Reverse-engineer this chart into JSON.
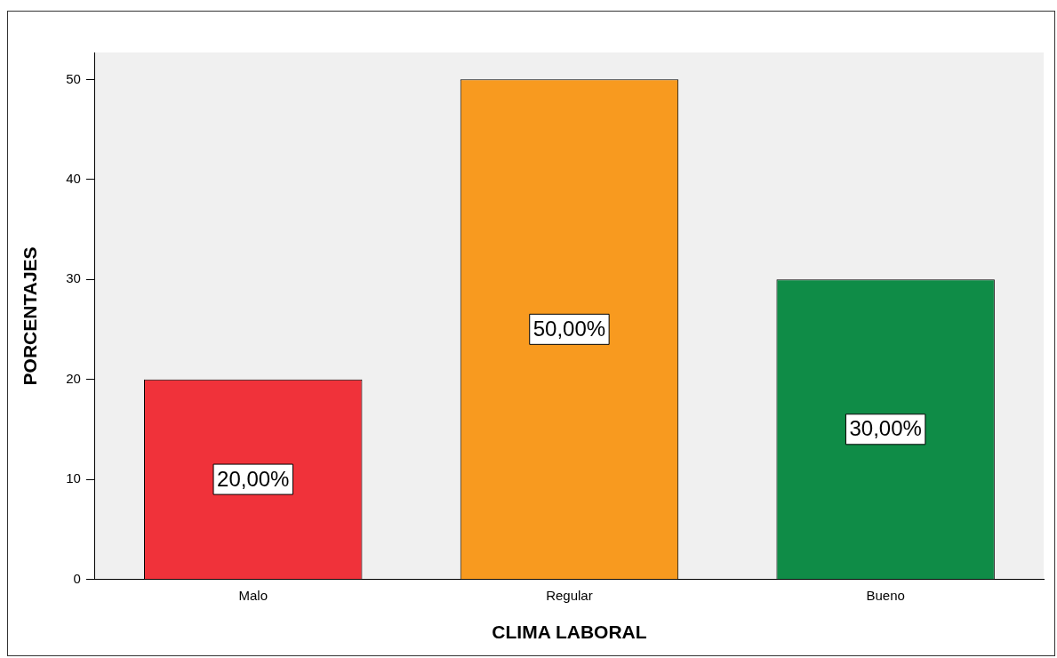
{
  "chart_data": {
    "type": "bar",
    "xlabel": "CLIMA LABORAL",
    "ylabel": "PORCENTAJES",
    "categories": [
      "Malo",
      "Regular",
      "Bueno"
    ],
    "values": [
      20,
      50,
      30
    ],
    "colors": [
      "#f0323a",
      "#f89a1f",
      "#0f8c47"
    ],
    "value_labels": [
      "20,00%",
      "50,00%",
      "30,00%"
    ],
    "ylim": [
      0,
      52.7
    ],
    "yticks": [
      0,
      10,
      20,
      30,
      40,
      50
    ],
    "grid": false,
    "legend": false
  }
}
